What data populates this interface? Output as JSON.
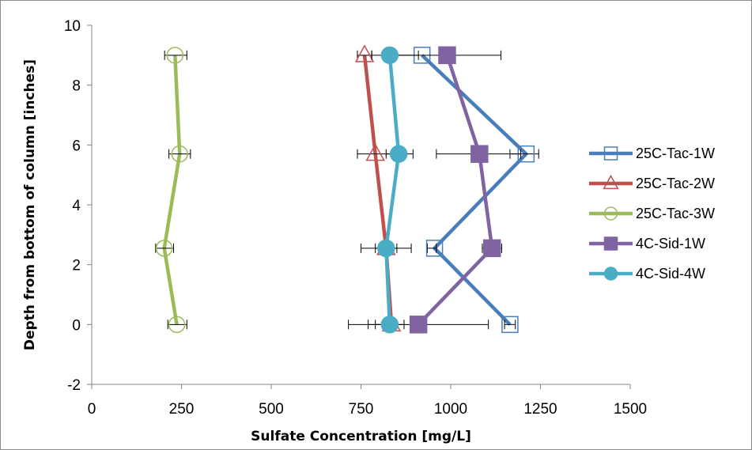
{
  "chart_data": {
    "type": "scatter",
    "title": "",
    "xlabel": "Sulfate Concentration [mg/L]",
    "ylabel": "Depth from bottom of column [inches]",
    "xlim": [
      0,
      1500
    ],
    "ylim": [
      -2,
      10
    ],
    "xticks": [
      0,
      250,
      500,
      750,
      1000,
      1250,
      1500
    ],
    "yticks": [
      -2,
      0,
      2,
      4,
      6,
      8,
      10
    ],
    "grid": false,
    "legend_position": "right",
    "series": [
      {
        "name": "25C-Tac-1W",
        "color": "#4a7ebb",
        "marker": "square",
        "marker_filled": false,
        "points": [
          [
            920,
            9
          ],
          [
            1210,
            5.7
          ],
          [
            955,
            2.55
          ],
          [
            1165,
            0
          ]
        ],
        "error_x": [
          [
            null,
            null
          ],
          [
            1165,
            1245
          ],
          [
            935,
            960
          ],
          [
            1150,
            1180
          ]
        ]
      },
      {
        "name": "25C-Tac-2W",
        "color": "#c0504d",
        "marker": "triangle",
        "marker_filled": false,
        "points": [
          [
            760,
            9
          ],
          [
            790,
            5.7
          ],
          [
            820,
            2.55
          ],
          [
            835,
            0
          ]
        ],
        "error_x": [
          [
            740,
            780
          ],
          [
            740,
            840
          ],
          [
            750,
            890
          ],
          [
            715,
            840
          ]
        ]
      },
      {
        "name": "25C-Tac-3W",
        "color": "#9bbb59",
        "marker": "circle",
        "marker_filled": false,
        "points": [
          [
            232,
            9
          ],
          [
            245,
            5.7
          ],
          [
            202,
            2.55
          ],
          [
            237,
            0
          ]
        ],
        "error_x": [
          [
            203,
            265
          ],
          [
            215,
            275
          ],
          [
            178,
            228
          ],
          [
            212,
            265
          ]
        ]
      },
      {
        "name": "4C-Sid-1W",
        "color": "#8064a2",
        "marker": "square",
        "marker_filled": true,
        "points": [
          [
            990,
            9
          ],
          [
            1080,
            5.7
          ],
          [
            1115,
            2.55
          ],
          [
            910,
            0
          ]
        ],
        "error_x": [
          [
            840,
            1140
          ],
          [
            960,
            1195
          ],
          [
            1088,
            1142
          ],
          [
            770,
            1105
          ]
        ]
      },
      {
        "name": "4C-Sid-4W",
        "color": "#4bacc6",
        "marker": "circle",
        "marker_filled": true,
        "points": [
          [
            830,
            9
          ],
          [
            855,
            5.7
          ],
          [
            820,
            2.55
          ],
          [
            830,
            0
          ]
        ],
        "error_x": [
          [
            780,
            910
          ],
          [
            820,
            895
          ],
          [
            790,
            850
          ],
          [
            790,
            870
          ]
        ]
      }
    ]
  }
}
